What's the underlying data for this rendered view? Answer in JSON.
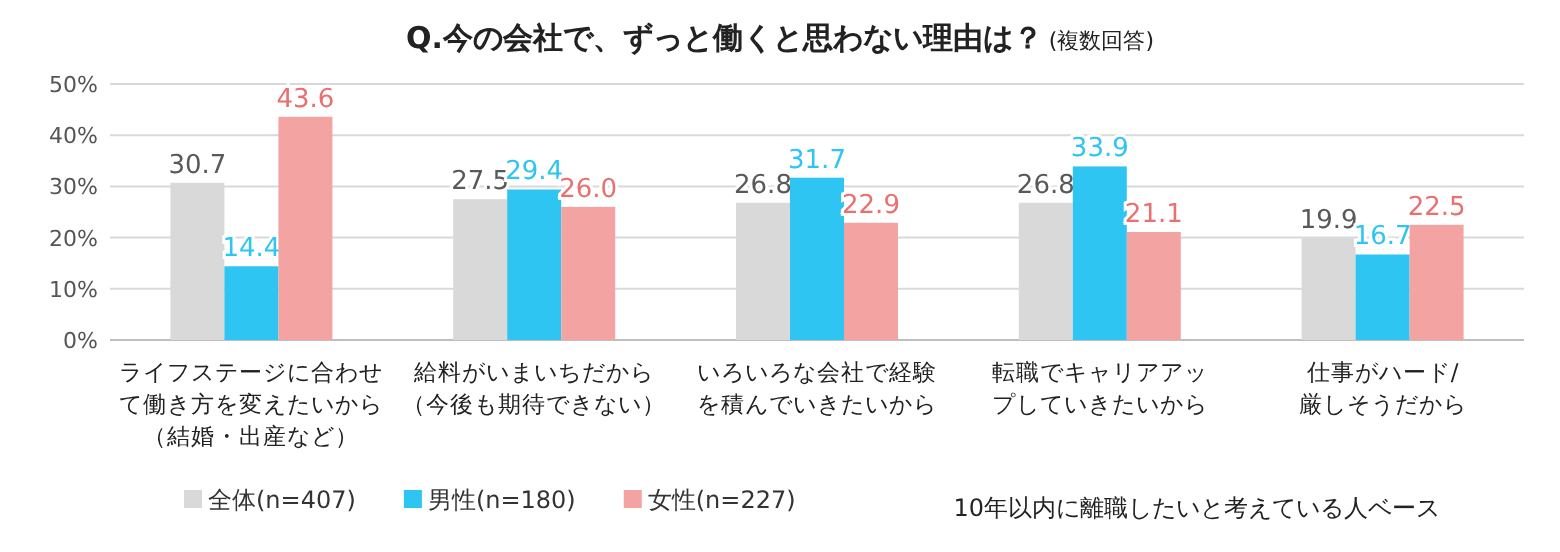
{
  "chart_data": {
    "type": "bar",
    "title": "Q.今の会社で、ずっと働くと思わない理由は？",
    "subtitle": "(複数回答)",
    "categories": [
      "ライフステージに合わせて働き方を変えたいから（結婚・出産など）",
      "給料がいまいちだから（今後も期待できない）",
      "いろいろな会社で経験を積んでいきたいから",
      "転職でキャリアアップしていきたいから",
      "仕事がハード/厳しそうだから"
    ],
    "series": [
      {
        "name": "全体(n=407)",
        "color": "#d9d9d9",
        "values": [
          30.7,
          27.5,
          26.8,
          26.8,
          19.9
        ],
        "value_labels": [
          "30.7",
          "27.5",
          "26.8",
          "26.8",
          "19.9"
        ]
      },
      {
        "name": "男性(n=180)",
        "color": "#2ec5f2",
        "values": [
          14.4,
          29.4,
          31.7,
          33.9,
          16.7
        ],
        "value_labels": [
          "14.4",
          "29.4",
          "31.7",
          "33.9",
          "16.7"
        ]
      },
      {
        "name": "女性(n=227)",
        "color": "#f4a3a3",
        "values": [
          43.6,
          26.0,
          22.9,
          21.1,
          22.5
        ],
        "value_labels": [
          "43.6",
          "26.0",
          "22.9",
          "21.1",
          "22.5"
        ]
      }
    ],
    "ylim": [
      0,
      50
    ],
    "yticks": [
      {
        "value": 0,
        "label": "0%"
      },
      {
        "value": 10,
        "label": "10%"
      },
      {
        "value": 20,
        "label": "20%"
      },
      {
        "value": 30,
        "label": "30%"
      },
      {
        "value": 40,
        "label": "40%"
      },
      {
        "value": 50,
        "label": "50%"
      }
    ],
    "grid": "y",
    "legend": "bottom",
    "annotations": [
      "10年以内に離職したいと考えている人ベース"
    ]
  }
}
